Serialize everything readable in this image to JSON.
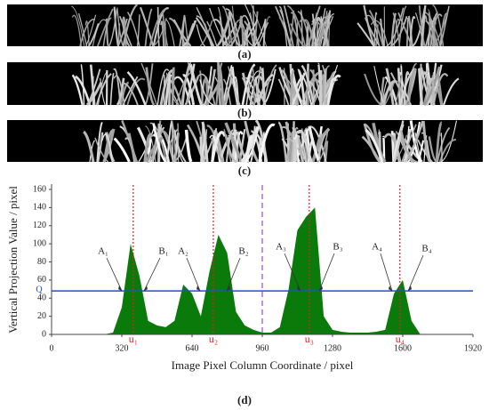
{
  "panels": [
    "(a)",
    "(b)",
    "(c)"
  ],
  "chart_data": {
    "type": "area",
    "color": "#0a7a0a",
    "x": [
      0,
      40,
      80,
      120,
      160,
      200,
      240,
      280,
      320,
      360,
      400,
      440,
      480,
      520,
      560,
      600,
      640,
      680,
      720,
      760,
      800,
      840,
      880,
      920,
      960,
      1000,
      1040,
      1080,
      1120,
      1160,
      1200,
      1240,
      1280,
      1320,
      1360,
      1400,
      1440,
      1480,
      1520,
      1560,
      1600,
      1640,
      1680,
      1720,
      1760,
      1800,
      1840,
      1880,
      1920
    ],
    "values": [
      0,
      0,
      0,
      0,
      0,
      0,
      0,
      2,
      30,
      100,
      65,
      15,
      10,
      8,
      15,
      55,
      45,
      20,
      70,
      110,
      90,
      25,
      10,
      5,
      2,
      2,
      8,
      50,
      115,
      130,
      140,
      20,
      5,
      3,
      2,
      2,
      2,
      3,
      5,
      45,
      60,
      15,
      0,
      0,
      0,
      0,
      0,
      0,
      0
    ],
    "xlim": [
      0,
      1920
    ],
    "ylim": [
      0,
      160
    ],
    "xticks": [
      0,
      320,
      640,
      960,
      1280,
      1600,
      1920
    ],
    "yticks": [
      0,
      20,
      40,
      60,
      80,
      100,
      120,
      140,
      160
    ],
    "xlabel": "Image Pixel Column Coordinate / pixel",
    "ylabel": "Vertical Projection Value / pixel",
    "threshold": {
      "value": 48,
      "label": "Q",
      "color": "#1f4fd6"
    },
    "crop_rows": [
      {
        "value": 372,
        "label": "u₁"
      },
      {
        "value": 737,
        "label": "u₂"
      },
      {
        "value": 1174,
        "label": "u₃"
      },
      {
        "value": 1587,
        "label": "u₄"
      }
    ],
    "crop_row_color": "#e0202a",
    "divider": {
      "value": 960,
      "color": "#b36ad8"
    },
    "annotations": [
      "A₁",
      "B₁",
      "A₂",
      "B₂",
      "A₃",
      "B₃",
      "A₄",
      "B₄"
    ],
    "panel_label": "(d)"
  }
}
